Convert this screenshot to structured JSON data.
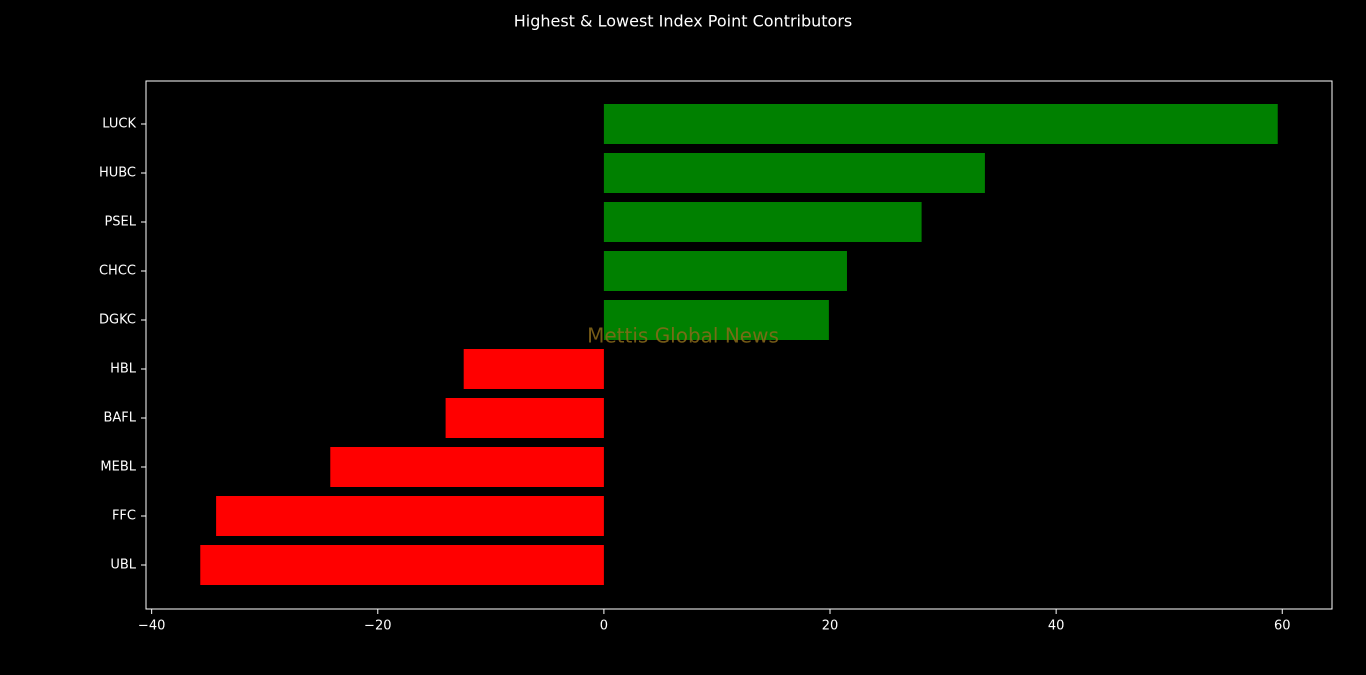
{
  "chart_data": {
    "type": "barh",
    "title": "Highest & Lowest Index Point Contributors",
    "watermark": "Mettis Global News",
    "categories": [
      "LUCK",
      "HUBC",
      "PSEL",
      "CHCC",
      "DGKC",
      "HBL",
      "BAFL",
      "MEBL",
      "FFC",
      "UBL"
    ],
    "values": [
      59.6,
      33.7,
      28.1,
      21.5,
      19.9,
      -12.4,
      -14.0,
      -24.2,
      -34.3,
      -35.7
    ],
    "colors": [
      "#008000",
      "#008000",
      "#008000",
      "#008000",
      "#008000",
      "#ff0000",
      "#ff0000",
      "#ff0000",
      "#ff0000",
      "#ff0000"
    ],
    "xlim": [
      -40.5,
      64.4
    ],
    "xticks": [
      {
        "value": -40,
        "label": "−40"
      },
      {
        "value": -20,
        "label": "−20"
      },
      0,
      20,
      40,
      60
    ],
    "grid": false
  }
}
